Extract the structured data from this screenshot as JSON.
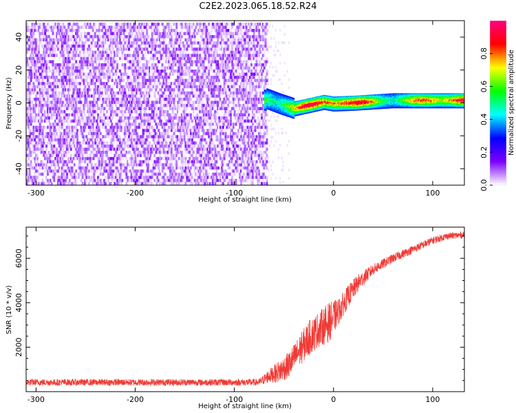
{
  "title": "C2E2.2023.065.18.52.R24",
  "chart_data": [
    {
      "type": "heatmap",
      "xlabel": "Height of straight line (km)",
      "ylabel": "Frequency (Hz)",
      "xlim": [
        -310,
        132
      ],
      "ylim": [
        -50,
        50
      ],
      "xticks": [
        -300,
        -200,
        -100,
        0,
        100
      ],
      "yticks": [
        -40,
        -20,
        0,
        20,
        40
      ],
      "colorbar": {
        "label": "Normalized spectral amplitude",
        "range": [
          0,
          1
        ],
        "ticks": [
          0.0,
          0.2,
          0.4,
          0.6,
          0.8
        ],
        "colors": [
          "#ffffff",
          "#7c00ff",
          "#0000ff",
          "#00ffff",
          "#00ff00",
          "#ffff00",
          "#ff0000",
          "#ff0080"
        ]
      },
      "regions": [
        {
          "name": "noise",
          "x": [
            -310,
            -68
          ],
          "freq": [
            -50,
            50
          ],
          "amplitude": [
            0.0,
            0.15
          ]
        },
        {
          "name": "sparse-noise",
          "x": [
            -68,
            -45
          ],
          "freq": [
            -50,
            50
          ],
          "amplitude": [
            0.0,
            0.05
          ]
        },
        {
          "name": "signal",
          "x": [
            -70,
            132
          ],
          "freq_center_points": [
            [
              -68,
              3
            ],
            [
              -55,
              0
            ],
            [
              -40,
              -3
            ],
            [
              -25,
              -1
            ],
            [
              -10,
              1
            ],
            [
              0,
              0
            ],
            [
              20,
              0.5
            ],
            [
              60,
              2
            ],
            [
              100,
              2
            ],
            [
              132,
              2
            ]
          ],
          "amplitude": [
            0.3,
            1.0
          ]
        }
      ],
      "grid": false
    },
    {
      "type": "line",
      "xlabel": "Height of straight line (km)",
      "ylabel": "SNR (10 * v/v)",
      "xlim": [
        -310,
        132
      ],
      "ylim": [
        0,
        7400
      ],
      "xticks": [
        -300,
        -200,
        -100,
        0,
        100
      ],
      "yticks": [
        2000,
        4000,
        6000
      ],
      "color": "#ef3b36",
      "series": [
        {
          "x": [
            -310,
            -250,
            -200,
            -150,
            -100,
            -75,
            -65,
            -55,
            -45,
            -35,
            -25,
            -15,
            -5,
            5,
            15,
            25,
            40,
            60,
            80,
            100,
            115,
            132
          ],
          "y": [
            420,
            420,
            420,
            420,
            420,
            420,
            700,
            900,
            1200,
            1800,
            2400,
            2800,
            3100,
            3600,
            4300,
            4900,
            5500,
            6000,
            6400,
            6800,
            7000,
            7050
          ],
          "noise": [
            150,
            150,
            150,
            150,
            150,
            160,
            300,
            500,
            600,
            700,
            800,
            800,
            900,
            600,
            500,
            400,
            250,
            200,
            180,
            170,
            150,
            150
          ]
        }
      ],
      "grid": false
    }
  ]
}
